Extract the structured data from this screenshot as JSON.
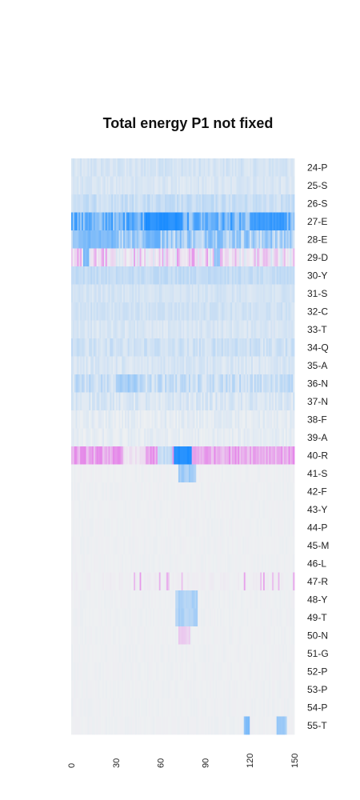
{
  "chart_data": {
    "type": "heatmap",
    "title": "Total energy P1 not fixed",
    "xlabel": "",
    "ylabel": "",
    "x_range": [
      0,
      150
    ],
    "x_ticks": [
      "0",
      "30",
      "60",
      "90",
      "120",
      "150"
    ],
    "rows": [
      "24-P",
      "25-S",
      "26-S",
      "27-E",
      "28-E",
      "29-D",
      "30-Y",
      "31-S",
      "32-C",
      "33-T",
      "34-Q",
      "35-A",
      "36-N",
      "37-N",
      "38-F",
      "39-A",
      "40-R",
      "41-S",
      "42-F",
      "43-Y",
      "44-P",
      "45-M",
      "46-L",
      "47-R",
      "48-Y",
      "49-T",
      "50-N",
      "51-G",
      "52-P",
      "53-P",
      "54-P",
      "55-T"
    ],
    "colormap": {
      "negative": "#1a8cff",
      "zero": "#eef0f2",
      "positive": "#e26ae6"
    },
    "value_range": [
      -1,
      1
    ],
    "row_profiles": [
      {
        "row": "24-P",
        "base": -0.12,
        "noise": 0.06
      },
      {
        "row": "25-S",
        "base": -0.1,
        "noise": 0.05
      },
      {
        "row": "26-S",
        "base": -0.18,
        "noise": 0.08
      },
      {
        "row": "27-E",
        "base": -0.6,
        "noise": 0.3,
        "bands": [
          {
            "x0": 50,
            "x1": 75,
            "value": -0.95
          },
          {
            "x0": 120,
            "x1": 145,
            "value": -0.85
          }
        ]
      },
      {
        "row": "28-E",
        "base": -0.32,
        "noise": 0.25,
        "bands": [
          {
            "x0": 5,
            "x1": 30,
            "value": -0.55
          },
          {
            "x0": 50,
            "x1": 60,
            "value": -0.6
          }
        ]
      },
      {
        "row": "29-D",
        "base": 0.05,
        "noise": 0.18,
        "pos_spikes": 0.25,
        "bands": [
          {
            "x0": 8,
            "x1": 12,
            "value": -0.5
          },
          {
            "x0": 95,
            "x1": 100,
            "value": -0.4
          }
        ]
      },
      {
        "row": "30-Y",
        "base": -0.2,
        "noise": 0.06
      },
      {
        "row": "31-S",
        "base": -0.12,
        "noise": 0.05
      },
      {
        "row": "32-C",
        "base": -0.14,
        "noise": 0.05
      },
      {
        "row": "33-T",
        "base": -0.1,
        "noise": 0.05
      },
      {
        "row": "34-Q",
        "base": -0.15,
        "noise": 0.08
      },
      {
        "row": "35-A",
        "base": -0.1,
        "noise": 0.06
      },
      {
        "row": "36-N",
        "base": -0.18,
        "noise": 0.12,
        "bands": [
          {
            "x0": 30,
            "x1": 45,
            "value": -0.35
          }
        ]
      },
      {
        "row": "37-N",
        "base": -0.1,
        "noise": 0.07
      },
      {
        "row": "38-F",
        "base": -0.05,
        "noise": 0.05
      },
      {
        "row": "39-A",
        "base": -0.04,
        "noise": 0.04
      },
      {
        "row": "40-R",
        "base": 0.55,
        "noise": 0.25,
        "bands": [
          {
            "x0": 35,
            "x1": 50,
            "value": 0.1
          },
          {
            "x0": 69,
            "x1": 81,
            "value": -0.95
          },
          {
            "x0": 58,
            "x1": 68,
            "value": -0.2
          }
        ]
      },
      {
        "row": "41-S",
        "base": 0.0,
        "noise": 0.02,
        "bands": [
          {
            "x0": 72,
            "x1": 84,
            "value": -0.35
          }
        ]
      },
      {
        "row": "42-F",
        "base": 0.0,
        "noise": 0.02
      },
      {
        "row": "43-Y",
        "base": 0.0,
        "noise": 0.02
      },
      {
        "row": "44-P",
        "base": 0.0,
        "noise": 0.02
      },
      {
        "row": "45-M",
        "base": 0.0,
        "noise": 0.02
      },
      {
        "row": "46-L",
        "base": 0.0,
        "noise": 0.02
      },
      {
        "row": "47-R",
        "base": 0.02,
        "noise": 0.03,
        "pos_spikes": 0.05
      },
      {
        "row": "48-Y",
        "base": 0.0,
        "noise": 0.02,
        "bands": [
          {
            "x0": 70,
            "x1": 85,
            "value": -0.3
          }
        ]
      },
      {
        "row": "49-T",
        "base": 0.0,
        "noise": 0.02,
        "bands": [
          {
            "x0": 70,
            "x1": 85,
            "value": -0.3
          }
        ]
      },
      {
        "row": "50-N",
        "base": 0.0,
        "noise": 0.02,
        "bands": [
          {
            "x0": 72,
            "x1": 80,
            "value": 0.25
          }
        ]
      },
      {
        "row": "51-G",
        "base": 0.0,
        "noise": 0.02
      },
      {
        "row": "52-P",
        "base": 0.0,
        "noise": 0.02
      },
      {
        "row": "53-P",
        "base": 0.0,
        "noise": 0.02
      },
      {
        "row": "54-P",
        "base": 0.0,
        "noise": 0.02
      },
      {
        "row": "55-T",
        "base": 0.0,
        "noise": 0.02,
        "bands": [
          {
            "x0": 116,
            "x1": 120,
            "value": -0.5
          },
          {
            "x0": 138,
            "x1": 145,
            "value": -0.35
          }
        ]
      }
    ]
  }
}
